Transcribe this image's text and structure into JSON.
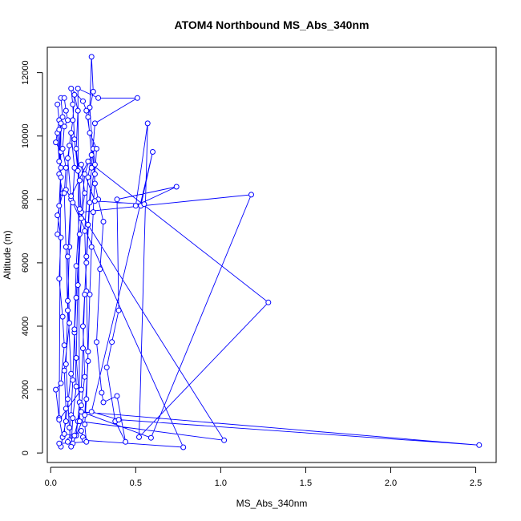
{
  "chart_data": {
    "type": "line",
    "title": "ATOM4 Northbound MS_Abs_340nm",
    "xlabel": "MS_Abs_340nm",
    "ylabel": "Altitude (m)",
    "xlim": [
      -0.02,
      2.62
    ],
    "ylim": [
      -300,
      12800
    ],
    "x_ticks": [
      "0.0",
      "0.5",
      "1.0",
      "1.5",
      "2.0",
      "2.5"
    ],
    "x_tick_values": [
      0,
      0.5,
      1.0,
      1.5,
      2.0,
      2.5
    ],
    "y_ticks": [
      "0",
      "2000",
      "4000",
      "6000",
      "8000",
      "10000",
      "12000"
    ],
    "y_tick_values": [
      0,
      2000,
      4000,
      6000,
      8000,
      10000,
      12000
    ],
    "grid": false,
    "legend": "none",
    "series": [
      {
        "color": "#0000ff",
        "marker": "open-circle",
        "points": [
          [
            0.04,
            11000
          ],
          [
            0.05,
            10500
          ],
          [
            0.03,
            9800
          ],
          [
            0.06,
            9500
          ],
          [
            0.05,
            8800
          ],
          [
            0.07,
            8200
          ],
          [
            0.04,
            7500
          ],
          [
            0.06,
            6800
          ],
          [
            0.05,
            5500
          ],
          [
            0.07,
            4300
          ],
          [
            0.08,
            3400
          ],
          [
            0.06,
            2200
          ],
          [
            0.03,
            2000
          ],
          [
            0.05,
            1100
          ],
          [
            0.07,
            500
          ],
          [
            0.06,
            200
          ],
          [
            0.09,
            1000
          ],
          [
            0.12,
            2500
          ],
          [
            0.1,
            4800
          ],
          [
            0.11,
            6500
          ],
          [
            0.12,
            8000
          ],
          [
            0.1,
            9300
          ],
          [
            0.13,
            10500
          ],
          [
            0.14,
            11300
          ],
          [
            0.16,
            10800
          ],
          [
            0.15,
            9600
          ],
          [
            0.17,
            8600
          ],
          [
            0.18,
            7400
          ],
          [
            0.16,
            5300
          ],
          [
            0.15,
            3000
          ],
          [
            0.17,
            1600
          ],
          [
            0.15,
            550
          ],
          [
            0.13,
            300
          ],
          [
            0.2,
            1200
          ],
          [
            0.22,
            2900
          ],
          [
            0.21,
            5100
          ],
          [
            0.2,
            7000
          ],
          [
            0.22,
            8700
          ],
          [
            0.24,
            9400
          ],
          [
            0.22,
            10600
          ],
          [
            0.25,
            11400
          ],
          [
            0.24,
            12500
          ],
          [
            0.23,
            10900
          ],
          [
            0.26,
            8500
          ],
          [
            0.28,
            8000
          ],
          [
            0.31,
            7300
          ],
          [
            0.29,
            5800
          ],
          [
            0.27,
            3500
          ],
          [
            0.3,
            1900
          ],
          [
            0.31,
            1600
          ],
          [
            0.39,
            1800
          ],
          [
            0.44,
            350
          ],
          [
            0.38,
            1000
          ],
          [
            0.33,
            2700
          ],
          [
            0.36,
            3500
          ],
          [
            0.4,
            4500
          ],
          [
            0.39,
            8000
          ],
          [
            0.74,
            8400
          ],
          [
            0.5,
            7800
          ],
          [
            0.57,
            10400
          ],
          [
            0.52,
            500
          ],
          [
            1.28,
            4750
          ],
          [
            0.22,
            9200
          ],
          [
            0.12,
            8100
          ],
          [
            0.1,
            6200
          ],
          [
            0.11,
            4100
          ],
          [
            0.08,
            2600
          ],
          [
            0.09,
            1400
          ],
          [
            0.08,
            600
          ],
          [
            0.14,
            550
          ],
          [
            0.16,
            1000
          ],
          [
            0.18,
            1500
          ],
          [
            0.2,
            2400
          ],
          [
            0.19,
            4000
          ],
          [
            0.21,
            6000
          ],
          [
            0.23,
            7900
          ],
          [
            0.26,
            9100
          ],
          [
            0.25,
            9600
          ],
          [
            0.2,
            8800
          ],
          [
            0.18,
            7600
          ],
          [
            1.18,
            8150
          ],
          [
            0.59,
            480
          ],
          [
            0.18,
            1300
          ],
          [
            2.52,
            250
          ],
          [
            0.4,
            1050
          ],
          [
            0.24,
            1300
          ],
          [
            0.6,
            9500
          ],
          [
            0.53,
            7800
          ],
          [
            0.55,
            7850
          ],
          [
            0.26,
            7950
          ],
          [
            0.18,
            9100
          ],
          [
            0.2,
            8200
          ],
          [
            0.17,
            6900
          ],
          [
            0.15,
            4900
          ],
          [
            0.14,
            3800
          ],
          [
            0.13,
            2300
          ],
          [
            0.12,
            1200
          ],
          [
            0.11,
            400
          ],
          [
            0.1,
            350
          ],
          [
            0.18,
            700
          ],
          [
            0.19,
            500
          ],
          [
            0.2,
            400
          ],
          [
            0.78,
            180
          ],
          [
            0.13,
            7900
          ],
          [
            0.14,
            9000
          ],
          [
            0.12,
            10100
          ],
          [
            0.11,
            9700
          ],
          [
            0.09,
            8300
          ],
          [
            1.02,
            400
          ],
          [
            0.17,
            1000
          ],
          [
            0.16,
            11500
          ],
          [
            0.28,
            11200
          ],
          [
            0.51,
            11200
          ],
          [
            0.26,
            10400
          ],
          [
            0.24,
            9000
          ],
          [
            0.22,
            7200
          ],
          [
            0.21,
            6200
          ],
          [
            0.2,
            5000
          ],
          [
            0.19,
            3300
          ],
          [
            0.18,
            2000
          ],
          [
            0.05,
            1050
          ],
          [
            0.06,
            10400
          ],
          [
            0.05,
            9200
          ],
          [
            0.04,
            10100
          ],
          [
            0.06,
            9000
          ],
          [
            0.05,
            7800
          ],
          [
            0.04,
            6900
          ],
          [
            0.06,
            8700
          ],
          [
            0.05,
            10200
          ],
          [
            0.07,
            10600
          ],
          [
            0.06,
            11200
          ],
          [
            0.08,
            11200
          ],
          [
            0.09,
            10800
          ],
          [
            0.1,
            10500
          ],
          [
            0.08,
            10300
          ],
          [
            0.07,
            9600
          ],
          [
            0.09,
            9000
          ],
          [
            0.08,
            8200
          ],
          [
            0.09,
            6500
          ],
          [
            0.1,
            4500
          ],
          [
            0.09,
            2800
          ],
          [
            0.1,
            1700
          ],
          [
            0.11,
            800
          ],
          [
            0.12,
            200
          ],
          [
            0.13,
            1100
          ],
          [
            0.15,
            2100
          ],
          [
            0.14,
            3900
          ],
          [
            0.15,
            5900
          ],
          [
            0.17,
            7700
          ],
          [
            0.16,
            8900
          ],
          [
            0.14,
            9900
          ],
          [
            0.13,
            11000
          ],
          [
            0.12,
            11500
          ],
          [
            0.19,
            11100
          ],
          [
            0.21,
            10800
          ],
          [
            0.23,
            10100
          ],
          [
            0.27,
            9600
          ],
          [
            0.26,
            8800
          ],
          [
            0.25,
            7600
          ],
          [
            0.24,
            6500
          ],
          [
            0.23,
            5000
          ],
          [
            0.22,
            3200
          ],
          [
            0.21,
            1700
          ],
          [
            0.2,
            900
          ],
          [
            0.21,
            350
          ],
          [
            0.05,
            300
          ]
        ]
      }
    ]
  }
}
